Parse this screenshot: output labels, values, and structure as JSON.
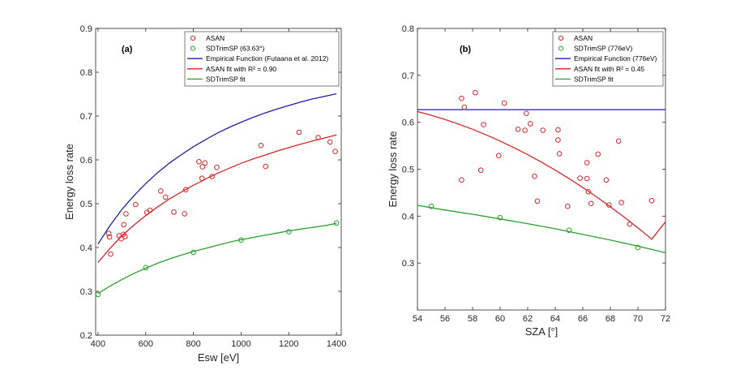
{
  "chart_data": [
    {
      "type": "scatter",
      "panel_label": "(a)",
      "xlabel": "Esw [eV]",
      "ylabel": "Energy loss rate",
      "xlim": [
        390,
        1420
      ],
      "ylim": [
        0.2,
        0.9
      ],
      "xticks": [
        400,
        600,
        800,
        1000,
        1200,
        1400
      ],
      "yticks": [
        0.2,
        0.3,
        0.4,
        0.5,
        0.6,
        0.7,
        0.8,
        0.9
      ],
      "grid": false,
      "legend_position": "top-right",
      "series": [
        {
          "name": "ASAN",
          "kind": "markers",
          "color": "#d62728",
          "points": [
            [
              445,
              0.432
            ],
            [
              448,
              0.424
            ],
            [
              453,
              0.385
            ],
            [
              488,
              0.427
            ],
            [
              497,
              0.42
            ],
            [
              506,
              0.43
            ],
            [
              508,
              0.452
            ],
            [
              513,
              0.425
            ],
            [
              517,
              0.477
            ],
            [
              558,
              0.498
            ],
            [
              605,
              0.48
            ],
            [
              618,
              0.485
            ],
            [
              663,
              0.529
            ],
            [
              683,
              0.515
            ],
            [
              718,
              0.481
            ],
            [
              763,
              0.477
            ],
            [
              768,
              0.532
            ],
            [
              823,
              0.596
            ],
            [
              836,
              0.558
            ],
            [
              838,
              0.584
            ],
            [
              848,
              0.593
            ],
            [
              878,
              0.562
            ],
            [
              898,
              0.583
            ],
            [
              1083,
              0.633
            ],
            [
              1103,
              0.585
            ],
            [
              1243,
              0.663
            ],
            [
              1323,
              0.651
            ],
            [
              1373,
              0.641
            ],
            [
              1395,
              0.619
            ]
          ]
        },
        {
          "name": "SDTrimSP (63.63°)",
          "kind": "markers",
          "color": "#2ca02c",
          "points": [
            [
              400,
              0.293
            ],
            [
              600,
              0.354
            ],
            [
              800,
              0.389
            ],
            [
              1000,
              0.417
            ],
            [
              1200,
              0.436
            ],
            [
              1400,
              0.456
            ]
          ]
        },
        {
          "name": "Empirical Function (Futaana et al. 2012)",
          "kind": "line",
          "color": "#1f1fa8",
          "points": [
            [
              400,
              0.408
            ],
            [
              450,
              0.45
            ],
            [
              500,
              0.487
            ],
            [
              550,
              0.518
            ],
            [
              600,
              0.546
            ],
            [
              650,
              0.571
            ],
            [
              700,
              0.593
            ],
            [
              750,
              0.612
            ],
            [
              800,
              0.63
            ],
            [
              850,
              0.646
            ],
            [
              900,
              0.661
            ],
            [
              950,
              0.674
            ],
            [
              1000,
              0.686
            ],
            [
              1050,
              0.697
            ],
            [
              1100,
              0.707
            ],
            [
              1150,
              0.716
            ],
            [
              1200,
              0.724
            ],
            [
              1250,
              0.732
            ],
            [
              1300,
              0.739
            ],
            [
              1350,
              0.745
            ],
            [
              1400,
              0.751
            ]
          ]
        },
        {
          "name": "ASAN fit with R² = 0.90",
          "kind": "line",
          "color": "#d62728",
          "points": [
            [
              400,
              0.366
            ],
            [
              450,
              0.398
            ],
            [
              500,
              0.427
            ],
            [
              550,
              0.451
            ],
            [
              600,
              0.473
            ],
            [
              650,
              0.493
            ],
            [
              700,
              0.511
            ],
            [
              750,
              0.527
            ],
            [
              800,
              0.542
            ],
            [
              850,
              0.556
            ],
            [
              900,
              0.569
            ],
            [
              950,
              0.581
            ],
            [
              1000,
              0.592
            ],
            [
              1050,
              0.602
            ],
            [
              1100,
              0.611
            ],
            [
              1150,
              0.62
            ],
            [
              1200,
              0.628
            ],
            [
              1250,
              0.636
            ],
            [
              1300,
              0.643
            ],
            [
              1350,
              0.65
            ],
            [
              1400,
              0.657
            ]
          ]
        },
        {
          "name": "SDTrimSP fit",
          "kind": "line",
          "color": "#2ca02c",
          "points": [
            [
              400,
              0.295
            ],
            [
              450,
              0.312
            ],
            [
              500,
              0.327
            ],
            [
              550,
              0.341
            ],
            [
              600,
              0.353
            ],
            [
              650,
              0.364
            ],
            [
              700,
              0.374
            ],
            [
              750,
              0.383
            ],
            [
              800,
              0.391
            ],
            [
              850,
              0.398
            ],
            [
              900,
              0.405
            ],
            [
              950,
              0.412
            ],
            [
              1000,
              0.418
            ],
            [
              1050,
              0.423
            ],
            [
              1100,
              0.428
            ],
            [
              1150,
              0.433
            ],
            [
              1200,
              0.438
            ],
            [
              1250,
              0.442
            ],
            [
              1300,
              0.446
            ],
            [
              1350,
              0.45
            ],
            [
              1400,
              0.455
            ]
          ]
        }
      ],
      "legend": [
        "ASAN",
        "SDTrimSP (63.63°)",
        "Empirical Function (Futaana et al. 2012)",
        "ASAN fit with R² = 0.90",
        "SDTrimSP fit"
      ]
    },
    {
      "type": "scatter",
      "panel_label": "(b)",
      "xlabel": "SZA [°]",
      "ylabel": "Energy loss rate",
      "xlim": [
        54,
        72
      ],
      "ylim": [
        0.2,
        0.8
      ],
      "xticks": [
        54,
        56,
        58,
        60,
        62,
        64,
        66,
        68,
        70,
        72
      ],
      "yticks": [
        0.3,
        0.4,
        0.5,
        0.6,
        0.7,
        0.8
      ],
      "grid": false,
      "legend_position": "top-right",
      "series": [
        {
          "name": "ASAN",
          "kind": "markers",
          "color": "#d62728",
          "points": [
            [
              57.2,
              0.651
            ],
            [
              57.4,
              0.632
            ],
            [
              58.2,
              0.663
            ],
            [
              57.2,
              0.477
            ],
            [
              58.8,
              0.595
            ],
            [
              58.6,
              0.498
            ],
            [
              60.3,
              0.641
            ],
            [
              61.3,
              0.585
            ],
            [
              61.8,
              0.583
            ],
            [
              61.9,
              0.619
            ],
            [
              62.2,
              0.597
            ],
            [
              63.1,
              0.583
            ],
            [
              59.9,
              0.529
            ],
            [
              62.5,
              0.485
            ],
            [
              62.7,
              0.432
            ],
            [
              64.2,
              0.584
            ],
            [
              64.2,
              0.562
            ],
            [
              64.3,
              0.533
            ],
            [
              64.9,
              0.421
            ],
            [
              65.8,
              0.481
            ],
            [
              66.3,
              0.514
            ],
            [
              66.3,
              0.48
            ],
            [
              66.4,
              0.452
            ],
            [
              66.6,
              0.427
            ],
            [
              67.1,
              0.532
            ],
            [
              67.7,
              0.477
            ],
            [
              67.9,
              0.424
            ],
            [
              68.6,
              0.56
            ],
            [
              68.8,
              0.429
            ],
            [
              69.4,
              0.383
            ],
            [
              71.0,
              0.433
            ]
          ]
        },
        {
          "name": "SDTrimSP (776eV)",
          "kind": "markers",
          "color": "#2ca02c",
          "points": [
            [
              55,
              0.421
            ],
            [
              60,
              0.397
            ],
            [
              65,
              0.37
            ],
            [
              70,
              0.333
            ]
          ]
        },
        {
          "name": "Empirical Function (776eV)",
          "kind": "line",
          "color": "#1f1fa8",
          "points": [
            [
              54,
              0.627
            ],
            [
              72,
              0.627
            ]
          ]
        },
        {
          "name": "ASAN fit with R² = 0.45",
          "kind": "line",
          "color": "#d62728",
          "points": [
            [
              54,
              0.623
            ],
            [
              55,
              0.615
            ],
            [
              56,
              0.606
            ],
            [
              57,
              0.596
            ],
            [
              58,
              0.585
            ],
            [
              59,
              0.573
            ],
            [
              60,
              0.56
            ],
            [
              61,
              0.546
            ],
            [
              62,
              0.531
            ],
            [
              63,
              0.515
            ],
            [
              64,
              0.498
            ],
            [
              65,
              0.48
            ],
            [
              66,
              0.461
            ],
            [
              67,
              0.441
            ],
            [
              68,
              0.42
            ],
            [
              69,
              0.398
            ],
            [
              70,
              0.375
            ],
            [
              71,
              0.351
            ],
            [
              72,
              0.388
            ]
          ]
        },
        {
          "name": "SDTrimSP fit",
          "kind": "line",
          "color": "#2ca02c",
          "points": [
            [
              54,
              0.423
            ],
            [
              56,
              0.413
            ],
            [
              58,
              0.404
            ],
            [
              60,
              0.394
            ],
            [
              62,
              0.384
            ],
            [
              64,
              0.373
            ],
            [
              66,
              0.361
            ],
            [
              68,
              0.349
            ],
            [
              70,
              0.336
            ],
            [
              72,
              0.322
            ]
          ]
        }
      ],
      "legend": [
        "ASAN",
        "SDTrimSP (776eV)",
        "Empirical Function (776eV)",
        "ASAN fit with R² = 0.45",
        "SDTrimSP fit"
      ]
    }
  ]
}
